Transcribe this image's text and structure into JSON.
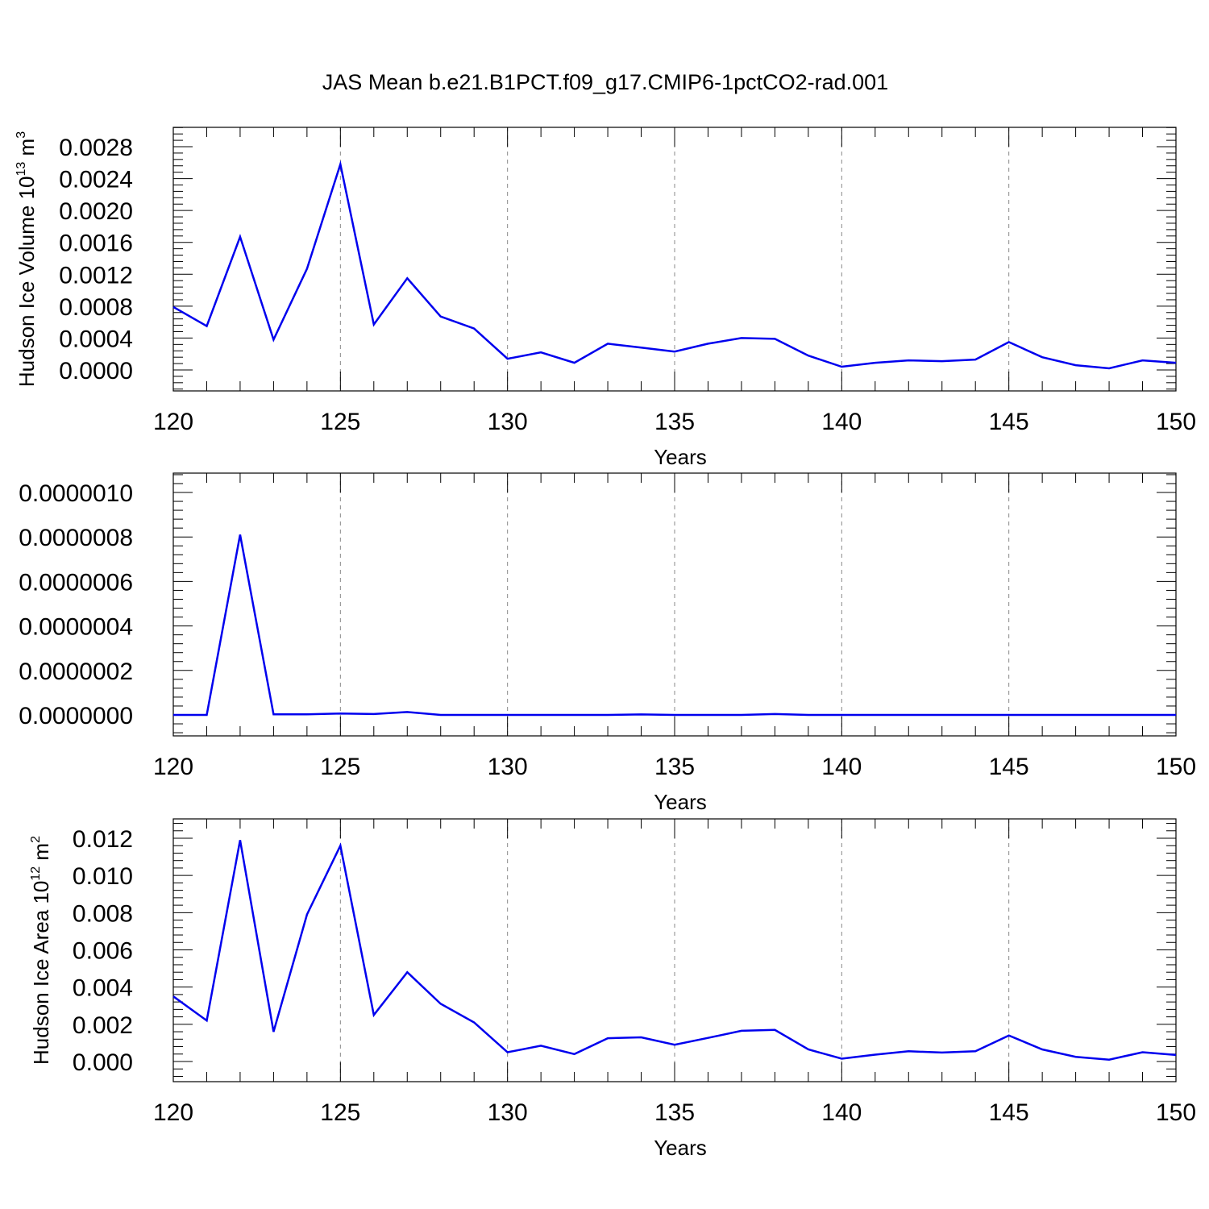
{
  "title": "JAS Mean b.e21.B1PCT.f09_g17.CMIP6-1pctCO2-rad.001",
  "colors": {
    "line": "#0000ee",
    "axis": "#000000",
    "grid": "#888888"
  },
  "chart_data": [
    {
      "type": "line",
      "ylabel": {
        "text": "Hudson Ice Volume 10",
        "exponent": "13",
        "unit": " m",
        "unit_exponent": "3"
      },
      "xlabel": "Years",
      "xlim": [
        120,
        150
      ],
      "ylim": [
        0,
        0.0028
      ],
      "x_ticks": [
        "120",
        "125",
        "130",
        "135",
        "140",
        "145",
        "150"
      ],
      "y_ticks": [
        "0.0000",
        "0.0004",
        "0.0008",
        "0.0012",
        "0.0016",
        "0.0020",
        "0.0024",
        "0.0028"
      ],
      "grid": "vertical dashed at major x ticks",
      "x": [
        120,
        121,
        122,
        123,
        124,
        125,
        126,
        127,
        128,
        129,
        130,
        131,
        132,
        133,
        134,
        135,
        136,
        137,
        138,
        139,
        140,
        141,
        142,
        143,
        144,
        145,
        146,
        147,
        148,
        149,
        150
      ],
      "series": [
        {
          "values": [
            0.00079,
            0.00055,
            0.00167,
            0.00038,
            0.00127,
            0.00258,
            0.00057,
            0.00115,
            0.00067,
            0.00052,
            0.00014,
            0.00022,
            9e-05,
            0.00033,
            0.00028,
            0.00023,
            0.00033,
            0.0004,
            0.00039,
            0.00018,
            4e-05,
            9e-05,
            0.00012,
            0.00011,
            0.00013,
            0.00035,
            0.00016,
            6e-05,
            2e-05,
            0.00012,
            9e-05
          ]
        }
      ]
    },
    {
      "type": "line",
      "xlabel": "Years",
      "xlim": [
        120,
        150
      ],
      "ylim": [
        0,
        1e-06
      ],
      "x_ticks": [
        "120",
        "125",
        "130",
        "135",
        "140",
        "145",
        "150"
      ],
      "y_ticks": [
        "0.0000000",
        "0.0000002",
        "0.0000004",
        "0.0000006",
        "0.0000008",
        "0.0000010"
      ],
      "grid": "vertical dashed at major x ticks",
      "x": [
        120,
        121,
        122,
        123,
        124,
        125,
        126,
        127,
        128,
        129,
        130,
        131,
        132,
        133,
        134,
        135,
        136,
        137,
        138,
        139,
        140,
        141,
        142,
        143,
        144,
        145,
        146,
        147,
        148,
        149,
        150
      ],
      "series": [
        {
          "values": [
            0,
            0,
            8.1e-07,
            3e-09,
            3e-09,
            6e-09,
            4e-09,
            1.3e-08,
            0,
            0,
            0,
            0,
            0,
            0,
            2e-09,
            0,
            0,
            0,
            4e-09,
            0,
            0,
            0,
            0,
            0,
            0,
            0,
            0,
            0,
            0,
            0,
            0
          ]
        }
      ]
    },
    {
      "type": "line",
      "ylabel": {
        "text": "Hudson Ice Area 10",
        "exponent": "12",
        "unit": " m",
        "unit_exponent": "2"
      },
      "xlabel": "Years",
      "xlim": [
        120,
        150
      ],
      "ylim": [
        0,
        0.012
      ],
      "x_ticks": [
        "120",
        "125",
        "130",
        "135",
        "140",
        "145",
        "150"
      ],
      "y_ticks": [
        "0.000",
        "0.002",
        "0.004",
        "0.006",
        "0.008",
        "0.010",
        "0.012"
      ],
      "grid": "vertical dashed at major x ticks",
      "x": [
        120,
        121,
        122,
        123,
        124,
        125,
        126,
        127,
        128,
        129,
        130,
        131,
        132,
        133,
        134,
        135,
        136,
        137,
        138,
        139,
        140,
        141,
        142,
        143,
        144,
        145,
        146,
        147,
        148,
        149,
        150
      ],
      "series": [
        {
          "values": [
            0.0035,
            0.0022,
            0.0119,
            0.0016,
            0.0079,
            0.0116,
            0.0025,
            0.0048,
            0.0031,
            0.0021,
            0.0005,
            0.00085,
            0.0004,
            0.00125,
            0.0013,
            0.0009,
            0.00127,
            0.00165,
            0.0017,
            0.00065,
            0.00015,
            0.00037,
            0.00055,
            0.00048,
            0.00055,
            0.0014,
            0.00065,
            0.00025,
            0.0001,
            0.0005,
            0.00035
          ]
        }
      ]
    }
  ]
}
